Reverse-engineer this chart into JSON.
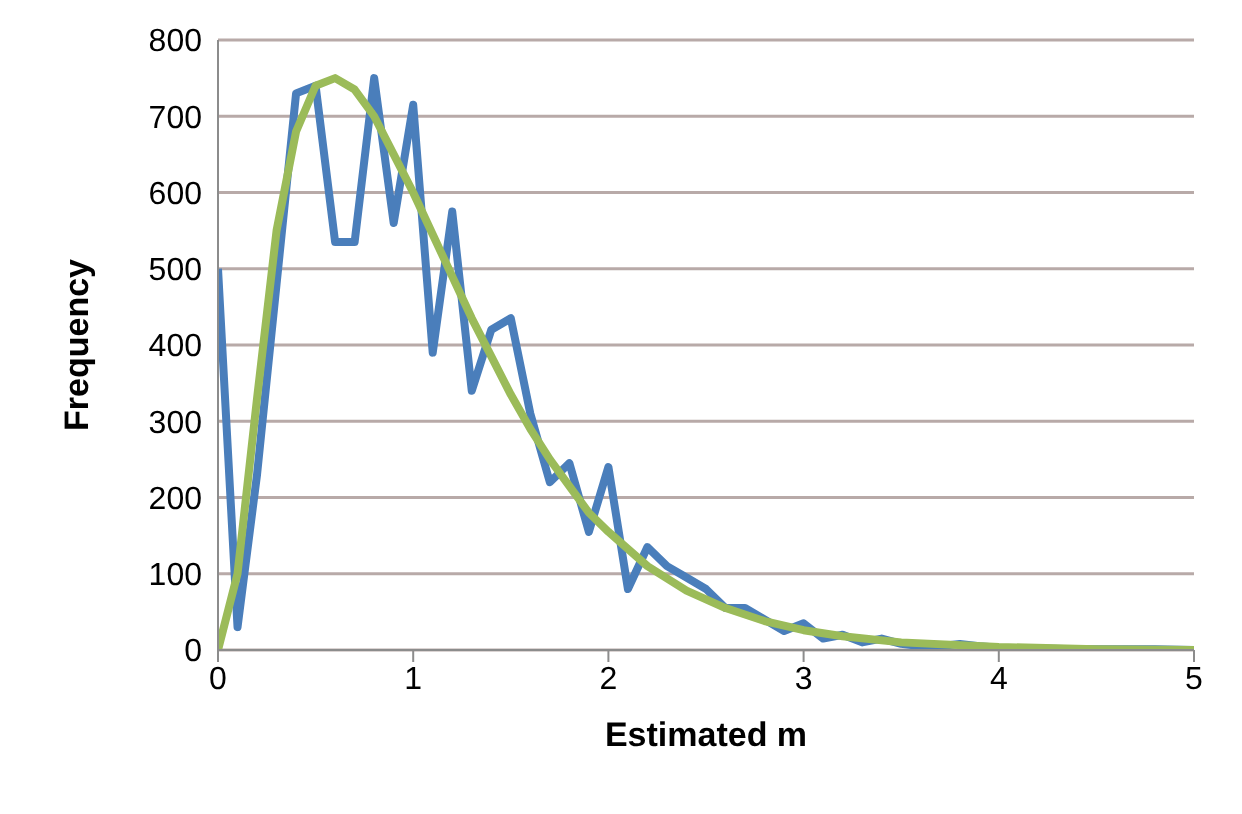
{
  "chart_data": {
    "type": "line",
    "xlabel": "Estimated m",
    "ylabel": "Frequency",
    "xlim": [
      0,
      5
    ],
    "xticks": [
      0,
      1,
      2,
      3,
      4,
      5
    ],
    "ylim": [
      0,
      800
    ],
    "yticks": [
      0,
      100,
      200,
      300,
      400,
      500,
      600,
      700,
      800
    ],
    "grid": "y",
    "marker": "none",
    "line_style": "solid",
    "series": [
      {
        "color": "#4a7ebb",
        "x": [
          0,
          0.1,
          0.2,
          0.3,
          0.4,
          0.5,
          0.6,
          0.7,
          0.8,
          0.9,
          1.0,
          1.1,
          1.2,
          1.3,
          1.4,
          1.5,
          1.6,
          1.7,
          1.8,
          1.9,
          2.0,
          2.1,
          2.2,
          2.3,
          2.4,
          2.5,
          2.6,
          2.7,
          2.8,
          2.9,
          3.0,
          3.1,
          3.2,
          3.3,
          3.4,
          3.5,
          3.6,
          3.7,
          3.8,
          3.9,
          4.0,
          4.2,
          4.4,
          4.6,
          4.8,
          5.0
        ],
        "values": [
          500,
          30,
          230,
          480,
          730,
          740,
          535,
          535,
          750,
          560,
          715,
          390,
          575,
          340,
          420,
          435,
          310,
          220,
          245,
          155,
          240,
          80,
          135,
          110,
          95,
          80,
          55,
          55,
          40,
          25,
          35,
          15,
          20,
          10,
          15,
          8,
          5,
          5,
          8,
          5,
          3,
          2,
          1,
          1,
          1,
          0
        ]
      },
      {
        "color": "#9bbb59",
        "x": [
          0,
          0.1,
          0.2,
          0.3,
          0.4,
          0.5,
          0.6,
          0.7,
          0.8,
          0.9,
          1.0,
          1.1,
          1.2,
          1.3,
          1.4,
          1.5,
          1.6,
          1.7,
          1.8,
          1.9,
          2.0,
          2.2,
          2.4,
          2.6,
          2.8,
          3.0,
          3.2,
          3.5,
          4.0,
          4.5,
          5.0
        ],
        "values": [
          0,
          100,
          330,
          550,
          680,
          740,
          750,
          735,
          700,
          650,
          600,
          545,
          490,
          435,
          385,
          335,
          290,
          250,
          215,
          180,
          155,
          110,
          78,
          55,
          38,
          26,
          18,
          10,
          4,
          1,
          0
        ]
      }
    ]
  }
}
